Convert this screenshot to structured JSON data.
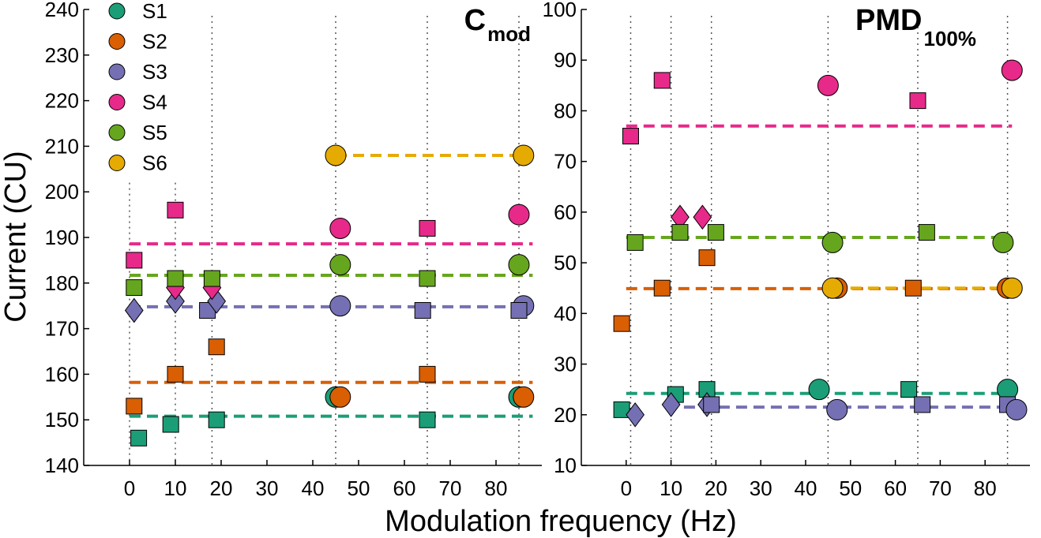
{
  "figure": {
    "xlabel": "Modulation frequency (Hz)",
    "ylabel": "Current (CU)"
  },
  "legend": [
    {
      "name": "S1",
      "color": "#1b9e77"
    },
    {
      "name": "S2",
      "color": "#d95f02"
    },
    {
      "name": "S3",
      "color": "#7570b3"
    },
    {
      "name": "S4",
      "color": "#e7298a"
    },
    {
      "name": "S5",
      "color": "#66a61e"
    },
    {
      "name": "S6",
      "color": "#e6ab02"
    }
  ],
  "chart_data": [
    {
      "type": "scatter",
      "title": "C",
      "title_sub": "mod",
      "xlim": [
        -10,
        90
      ],
      "ylim": [
        140,
        240
      ],
      "xticks": [
        0,
        10,
        20,
        30,
        40,
        50,
        60,
        70,
        80
      ],
      "yticks": [
        140,
        150,
        160,
        170,
        180,
        190,
        200,
        210,
        220,
        230,
        240
      ],
      "dotted_x": [
        0,
        10,
        18,
        45,
        65,
        85
      ],
      "series": [
        {
          "name": "S1",
          "color": "#1b9e77",
          "points": [
            {
              "x": 2,
              "y": 146,
              "m": "square"
            },
            {
              "x": 9,
              "y": 149,
              "m": "square"
            },
            {
              "x": 19,
              "y": 150,
              "m": "square"
            },
            {
              "x": 45,
              "y": 155,
              "m": "circle"
            },
            {
              "x": 65,
              "y": 150,
              "m": "square"
            },
            {
              "x": 85,
              "y": 155,
              "m": "circle"
            }
          ],
          "mean": 150.8,
          "mean_range": [
            0,
            88
          ]
        },
        {
          "name": "S2",
          "color": "#d95f02",
          "points": [
            {
              "x": 1,
              "y": 153,
              "m": "square"
            },
            {
              "x": 10,
              "y": 160,
              "m": "square"
            },
            {
              "x": 19,
              "y": 166,
              "m": "square"
            },
            {
              "x": 46,
              "y": 155,
              "m": "circle"
            },
            {
              "x": 65,
              "y": 160,
              "m": "square"
            },
            {
              "x": 86,
              "y": 155,
              "m": "circle"
            }
          ],
          "mean": 158.2,
          "mean_range": [
            0,
            88
          ]
        },
        {
          "name": "S3",
          "color": "#7570b3",
          "points": [
            {
              "x": 1,
              "y": 174,
              "m": "diamond"
            },
            {
              "x": 10,
              "y": 176,
              "m": "diamond"
            },
            {
              "x": 17,
              "y": 174,
              "m": "square"
            },
            {
              "x": 19,
              "y": 176,
              "m": "diamond"
            },
            {
              "x": 46,
              "y": 175,
              "m": "circle"
            },
            {
              "x": 64,
              "y": 174,
              "m": "square"
            },
            {
              "x": 86,
              "y": 175,
              "m": "circle"
            },
            {
              "x": 85,
              "y": 174,
              "m": "square"
            }
          ],
          "mean": 174.8,
          "mean_range": [
            0,
            88
          ]
        },
        {
          "name": "S4",
          "color": "#e7298a",
          "points": [
            {
              "x": 1,
              "y": 185,
              "m": "square"
            },
            {
              "x": 10,
              "y": 196,
              "m": "square"
            },
            {
              "x": 10,
              "y": 179,
              "m": "diamond"
            },
            {
              "x": 18,
              "y": 179,
              "m": "diamond"
            },
            {
              "x": 46,
              "y": 192,
              "m": "circle"
            },
            {
              "x": 65,
              "y": 192,
              "m": "square"
            },
            {
              "x": 85,
              "y": 195,
              "m": "circle"
            }
          ],
          "mean": 188.6,
          "mean_range": [
            0,
            88
          ]
        },
        {
          "name": "S5",
          "color": "#66a61e",
          "points": [
            {
              "x": 1,
              "y": 179,
              "m": "square"
            },
            {
              "x": 10,
              "y": 181,
              "m": "square"
            },
            {
              "x": 18,
              "y": 181,
              "m": "square"
            },
            {
              "x": 46,
              "y": 184,
              "m": "circle"
            },
            {
              "x": 65,
              "y": 181,
              "m": "square"
            },
            {
              "x": 85,
              "y": 184,
              "m": "circle"
            }
          ],
          "mean": 181.7,
          "mean_range": [
            0,
            88
          ]
        },
        {
          "name": "S6",
          "color": "#e6ab02",
          "points": [
            {
              "x": 45,
              "y": 208,
              "m": "circle"
            },
            {
              "x": 86,
              "y": 208,
              "m": "circle"
            }
          ],
          "mean": 208,
          "mean_range": [
            45,
            88
          ]
        }
      ]
    },
    {
      "type": "scatter",
      "title": "PMD",
      "title_sub": "100%",
      "xlim": [
        -10,
        90
      ],
      "ylim": [
        10,
        100
      ],
      "xticks": [
        0,
        10,
        20,
        30,
        40,
        50,
        60,
        70,
        80
      ],
      "yticks": [
        10,
        20,
        30,
        40,
        50,
        60,
        70,
        80,
        90,
        100
      ],
      "dotted_x": [
        1,
        10,
        19,
        45,
        65,
        85
      ],
      "series": [
        {
          "name": "S1",
          "color": "#1b9e77",
          "points": [
            {
              "x": -1,
              "y": 21,
              "m": "square"
            },
            {
              "x": 11,
              "y": 24,
              "m": "square"
            },
            {
              "x": 18,
              "y": 25,
              "m": "square"
            },
            {
              "x": 43,
              "y": 25,
              "m": "circle"
            },
            {
              "x": 63,
              "y": 25,
              "m": "square"
            },
            {
              "x": 85,
              "y": 25,
              "m": "circle"
            }
          ],
          "mean": 24.2,
          "mean_range": [
            0,
            86
          ]
        },
        {
          "name": "S2",
          "color": "#d95f02",
          "points": [
            {
              "x": -1,
              "y": 38,
              "m": "square"
            },
            {
              "x": 8,
              "y": 45,
              "m": "square"
            },
            {
              "x": 18,
              "y": 51,
              "m": "square"
            },
            {
              "x": 47,
              "y": 45,
              "m": "circle"
            },
            {
              "x": 64,
              "y": 45,
              "m": "square"
            },
            {
              "x": 85,
              "y": 45,
              "m": "circle"
            }
          ],
          "mean": 44.9,
          "mean_range": [
            0,
            86
          ]
        },
        {
          "name": "S3",
          "color": "#7570b3",
          "points": [
            {
              "x": 2,
              "y": 20,
              "m": "diamond"
            },
            {
              "x": 10,
              "y": 22,
              "m": "diamond"
            },
            {
              "x": 18,
              "y": 22,
              "m": "diamond"
            },
            {
              "x": 19,
              "y": 22,
              "m": "square"
            },
            {
              "x": 47,
              "y": 21,
              "m": "circle"
            },
            {
              "x": 66,
              "y": 22,
              "m": "square"
            },
            {
              "x": 85,
              "y": 22,
              "m": "square"
            },
            {
              "x": 87,
              "y": 21,
              "m": "circle"
            }
          ],
          "mean": 21.5,
          "mean_range": [
            9,
            86
          ]
        },
        {
          "name": "S4",
          "color": "#e7298a",
          "points": [
            {
              "x": 1,
              "y": 75,
              "m": "square"
            },
            {
              "x": 8,
              "y": 86,
              "m": "square"
            },
            {
              "x": 12,
              "y": 59,
              "m": "diamond"
            },
            {
              "x": 17,
              "y": 59,
              "m": "diamond"
            },
            {
              "x": 45,
              "y": 85,
              "m": "circle"
            },
            {
              "x": 65,
              "y": 82,
              "m": "square"
            },
            {
              "x": 86,
              "y": 88,
              "m": "circle"
            }
          ],
          "mean": 77,
          "mean_range": [
            0,
            86
          ]
        },
        {
          "name": "S5",
          "color": "#66a61e",
          "points": [
            {
              "x": 2,
              "y": 54,
              "m": "square"
            },
            {
              "x": 12,
              "y": 56,
              "m": "square"
            },
            {
              "x": 20,
              "y": 56,
              "m": "square"
            },
            {
              "x": 46,
              "y": 54,
              "m": "circle"
            },
            {
              "x": 67,
              "y": 56,
              "m": "square"
            },
            {
              "x": 84,
              "y": 54,
              "m": "circle"
            }
          ],
          "mean": 55,
          "mean_range": [
            0,
            86
          ]
        },
        {
          "name": "S6",
          "color": "#e6ab02",
          "points": [
            {
              "x": 46,
              "y": 45,
              "m": "circle"
            },
            {
              "x": 86,
              "y": 45,
              "m": "circle"
            }
          ],
          "mean": 45,
          "mean_range": [
            50,
            86
          ]
        }
      ]
    }
  ]
}
